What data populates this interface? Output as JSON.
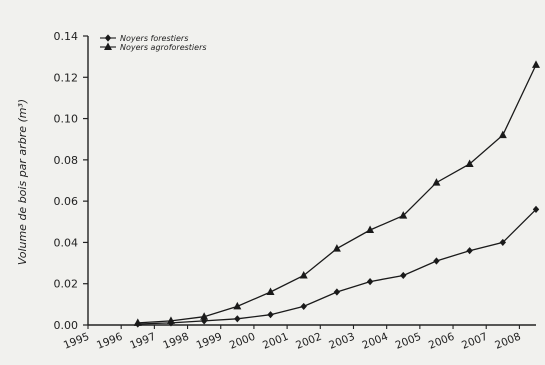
{
  "chart_data": {
    "type": "line",
    "title": "",
    "ylabel": "Volume de bois par arbre (m³)",
    "xlabel": "",
    "x_ticks": [
      "1995",
      "1996",
      "1997",
      "1998",
      "1999",
      "2000",
      "2001",
      "2002",
      "2003",
      "2004",
      "2005",
      "2006",
      "2007",
      "2008"
    ],
    "y_ticks": [
      "0.00",
      "0.02",
      "0.04",
      "0.06",
      "0.08",
      "0.10",
      "0.12",
      "0.14"
    ],
    "xlim": [
      1995,
      2008.5
    ],
    "ylim": [
      0,
      0.14
    ],
    "legend_placement": "top-left",
    "grid": false,
    "series": [
      {
        "name": "Noyers forestiers",
        "marker": "diamond",
        "color": "#1a1a1a",
        "x": [
          1996.5,
          1997.5,
          1998.5,
          1999.5,
          2000.5,
          2001.5,
          2002.5,
          2003.5,
          2004.5,
          2005.5,
          2006.5,
          2007.5,
          2008.5
        ],
        "values": [
          0.0005,
          0.001,
          0.002,
          0.003,
          0.005,
          0.009,
          0.016,
          0.021,
          0.024,
          0.031,
          0.036,
          0.04,
          0.056
        ]
      },
      {
        "name": "Noyers agroforestiers",
        "marker": "triangle",
        "color": "#1a1a1a",
        "x": [
          1996.5,
          1997.5,
          1998.5,
          1999.5,
          2000.5,
          2001.5,
          2002.5,
          2003.5,
          2004.5,
          2005.5,
          2006.5,
          2007.5,
          2008.5
        ],
        "values": [
          0.001,
          0.002,
          0.004,
          0.009,
          0.016,
          0.024,
          0.037,
          0.046,
          0.053,
          0.069,
          0.078,
          0.092,
          0.126
        ]
      }
    ]
  }
}
